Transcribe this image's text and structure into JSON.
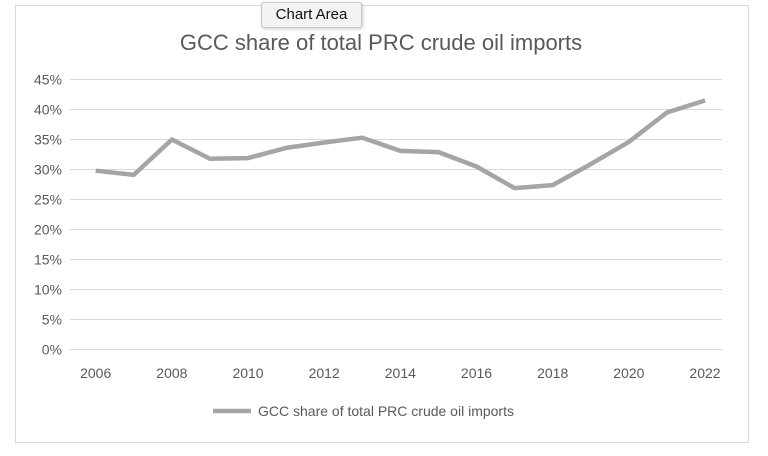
{
  "chart_data": {
    "type": "line",
    "title": "GCC share of total PRC crude oil imports",
    "x": [
      2006,
      2007,
      2008,
      2009,
      2010,
      2011,
      2012,
      2013,
      2014,
      2015,
      2016,
      2017,
      2018,
      2019,
      2020,
      2021,
      2022
    ],
    "x_tick_labels": [
      "2006",
      "2008",
      "2010",
      "2012",
      "2014",
      "2016",
      "2018",
      "2020",
      "2022"
    ],
    "series": [
      {
        "name": "GCC share of total PRC crude oil imports",
        "values": [
          29.8,
          29.1,
          35.0,
          31.8,
          31.9,
          33.6,
          34.5,
          35.3,
          33.1,
          32.9,
          30.5,
          26.9,
          27.4,
          30.9,
          34.6,
          39.5,
          41.5
        ],
        "color": "#a5a5a5"
      }
    ],
    "ylim": [
      0,
      45
    ],
    "y_ticks": [
      0,
      5,
      10,
      15,
      20,
      25,
      30,
      35,
      40,
      45
    ],
    "y_tick_labels": [
      "0%",
      "5%",
      "10%",
      "15%",
      "20%",
      "25%",
      "30%",
      "35%",
      "40%",
      "45%"
    ],
    "grid": true,
    "legend": "bottom"
  },
  "tooltip": "Chart Area"
}
